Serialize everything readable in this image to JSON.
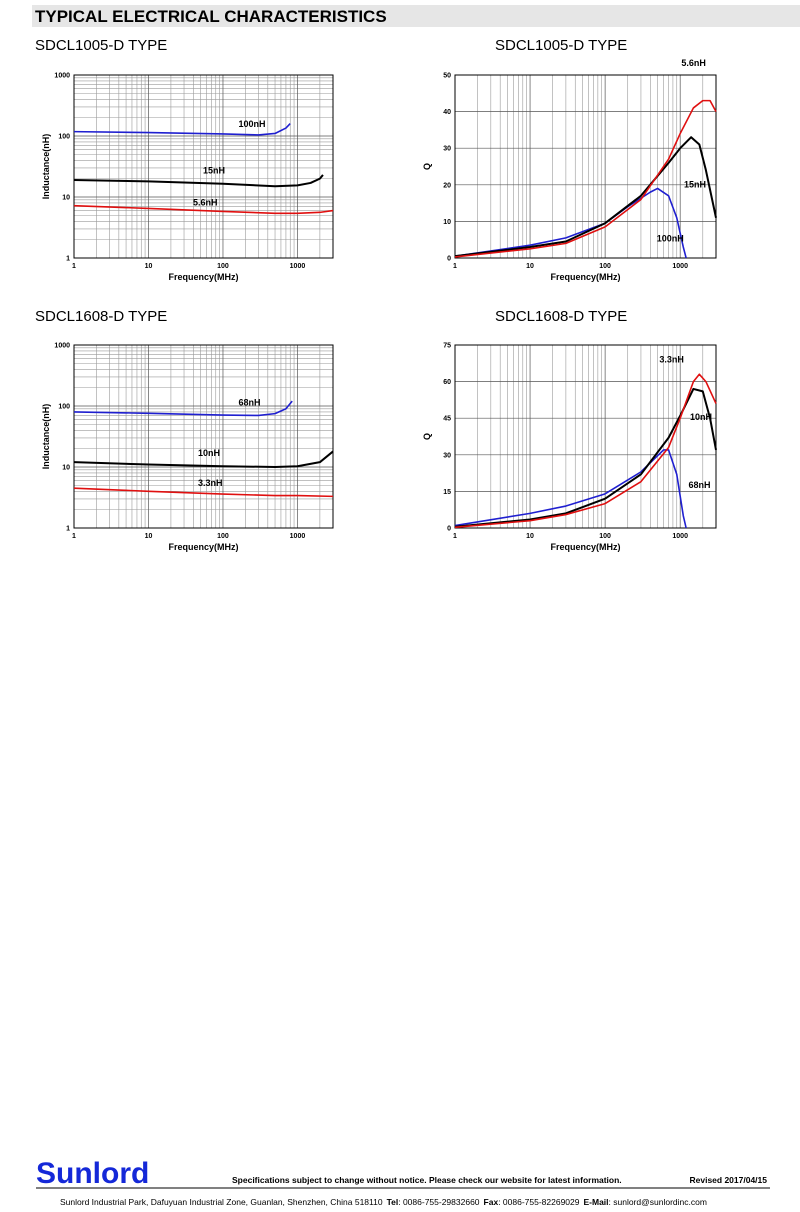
{
  "header": {
    "title": "TYPICAL ELECTRICAL CHARACTERISTICS"
  },
  "chart_data": [
    {
      "type": "line",
      "title": "SDCL1005-D TYPE",
      "xlabel": "Frequency(MHz)",
      "ylabel": "Inductance(nH)",
      "log_x": true,
      "log_y": true,
      "grid": true,
      "xlim": [
        1,
        3000
      ],
      "xticks": [
        1,
        10,
        100,
        1000
      ],
      "ylim": [
        1,
        1000
      ],
      "yticks": [
        1,
        10,
        100,
        1000
      ],
      "series": [
        {
          "name": "100nH",
          "color": "#1f1fd0",
          "x": [
            1,
            10,
            100,
            300,
            500,
            700,
            800
          ],
          "values": [
            118,
            114,
            108,
            104,
            110,
            135,
            160
          ]
        },
        {
          "name": "15nH",
          "color": "#000000",
          "x": [
            1,
            10,
            100,
            500,
            1000,
            1500,
            2000,
            2200
          ],
          "values": [
            19,
            18,
            16.5,
            15,
            15.5,
            17,
            20,
            23
          ]
        },
        {
          "name": "5.6nH",
          "color": "#e01010",
          "x": [
            1,
            10,
            100,
            500,
            1000,
            2000,
            3000
          ],
          "values": [
            7.2,
            6.5,
            5.8,
            5.4,
            5.4,
            5.6,
            6
          ]
        }
      ]
    },
    {
      "type": "line",
      "title": "SDCL1005-D TYPE",
      "xlabel": "Frequency(MHz)",
      "ylabel": "Q",
      "log_x": true,
      "log_y": false,
      "grid": true,
      "xlim": [
        1,
        3000
      ],
      "xticks": [
        1,
        10,
        100,
        1000
      ],
      "ylim": [
        0,
        50
      ],
      "yticks": [
        0,
        10,
        20,
        30,
        40,
        50
      ],
      "series": [
        {
          "name": "100nH",
          "color": "#1f1fd0",
          "x": [
            1,
            10,
            30,
            100,
            200,
            400,
            500,
            700,
            900,
            1100,
            1200
          ],
          "values": [
            0.5,
            3.5,
            5.5,
            9.5,
            14,
            18,
            19,
            17,
            11,
            3,
            0
          ]
        },
        {
          "name": "15nH",
          "color": "#000000",
          "x": [
            1,
            10,
            30,
            100,
            300,
            700,
            1000,
            1400,
            1800,
            2200,
            3000
          ],
          "values": [
            0.5,
            3,
            4.5,
            9.5,
            17,
            26,
            30,
            33,
            31,
            24,
            11
          ]
        },
        {
          "name": "5.6nH",
          "color": "#e01010",
          "x": [
            1,
            10,
            30,
            100,
            300,
            700,
            1000,
            1500,
            2000,
            2500,
            3000
          ],
          "values": [
            0.3,
            2.5,
            4,
            8.5,
            16,
            27,
            34,
            41,
            43,
            43,
            40
          ]
        }
      ]
    },
    {
      "type": "line",
      "title": "SDCL1608-D TYPE",
      "xlabel": "Frequency(MHz)",
      "ylabel": "Inductance(nH)",
      "log_x": true,
      "log_y": true,
      "grid": true,
      "xlim": [
        1,
        3000
      ],
      "xticks": [
        1,
        10,
        100,
        1000
      ],
      "ylim": [
        1,
        1000
      ],
      "yticks": [
        1,
        10,
        100,
        1000
      ],
      "series": [
        {
          "name": "68nH",
          "color": "#1f1fd0",
          "x": [
            1,
            10,
            100,
            300,
            500,
            700,
            850
          ],
          "values": [
            80,
            76,
            71,
            70,
            75,
            90,
            120
          ]
        },
        {
          "name": "10nH",
          "color": "#000000",
          "x": [
            1,
            10,
            100,
            500,
            1000,
            2000,
            3000
          ],
          "values": [
            12,
            11,
            10.3,
            10,
            10.3,
            12,
            18
          ]
        },
        {
          "name": "3.3nH",
          "color": "#e01010",
          "x": [
            1,
            10,
            100,
            500,
            1000,
            3000
          ],
          "values": [
            4.5,
            4,
            3.6,
            3.4,
            3.4,
            3.3
          ]
        }
      ]
    },
    {
      "type": "line",
      "title": "SDCL1608-D TYPE",
      "xlabel": "Frequency(MHz)",
      "ylabel": "Q",
      "log_x": true,
      "log_y": false,
      "grid": true,
      "xlim": [
        1,
        3000
      ],
      "xticks": [
        1,
        10,
        100,
        1000
      ],
      "ylim": [
        0,
        75
      ],
      "yticks": [
        0,
        15,
        30,
        45,
        60,
        75
      ],
      "series": [
        {
          "name": "68nH",
          "color": "#1f1fd0",
          "x": [
            1,
            10,
            30,
            100,
            300,
            600,
            700,
            900,
            1100,
            1200
          ],
          "values": [
            1,
            6,
            9,
            14,
            23,
            32,
            32,
            22,
            5,
            0
          ]
        },
        {
          "name": "10nH",
          "color": "#000000",
          "x": [
            1,
            10,
            30,
            100,
            300,
            700,
            1000,
            1500,
            2000,
            2500,
            3000
          ],
          "values": [
            0.5,
            3.5,
            6,
            12,
            22,
            37,
            46,
            57,
            56,
            45,
            32
          ]
        },
        {
          "name": "3.3nH",
          "color": "#e01010",
          "x": [
            1,
            10,
            30,
            100,
            300,
            700,
            1000,
            1500,
            1800,
            2200,
            3000
          ],
          "values": [
            0.3,
            3,
            5.5,
            10,
            19,
            33,
            45,
            60,
            63,
            60,
            51
          ]
        }
      ]
    }
  ],
  "footer": {
    "brand": "Sunlord",
    "notice": "Specifications subject to change without notice. Please check our website for latest information.",
    "revised": "Revised 2017/04/15",
    "address": "Sunlord Industrial Park, Dafuyuan Industrial Zone, Guanlan, Shenzhen, China 518110",
    "contacts": [
      {
        "label": "Tel",
        "value": ": 0086-755-29832660"
      },
      {
        "label": "Fax",
        "value": ": 0086-755-82269029"
      },
      {
        "label": "E-Mail",
        "value": ": sunlord@sunlordinc.com"
      }
    ]
  }
}
